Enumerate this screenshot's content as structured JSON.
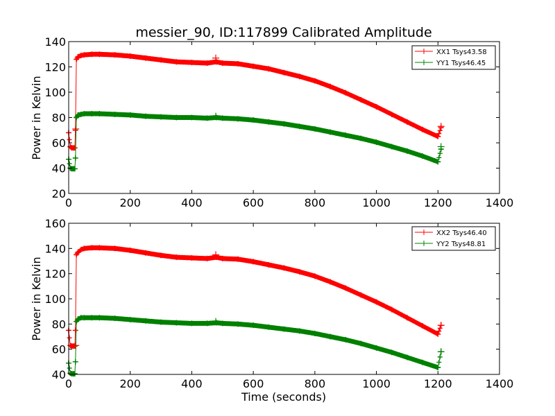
{
  "chart_data": [
    {
      "type": "line",
      "title": "messier_90, ID:117899 Calibrated Amplitude",
      "xlabel": "",
      "ylabel": "Power in Kelvin",
      "xlim": [
        0,
        1400
      ],
      "ylim": [
        20,
        140
      ],
      "xticks": [
        "0",
        "200",
        "400",
        "600",
        "800",
        "1000",
        "1200",
        "1400"
      ],
      "yticks": [
        "20",
        "40",
        "60",
        "80",
        "100",
        "120",
        "140"
      ],
      "legend_position": "top-right",
      "grid": false,
      "series": [
        {
          "name": "XX1 Tsys43.58",
          "color": "#ff0000",
          "marker": "plus",
          "x": [
            0,
            5,
            10,
            15,
            20,
            22,
            25,
            30,
            40,
            50,
            75,
            100,
            150,
            200,
            250,
            300,
            350,
            400,
            450,
            480,
            500,
            550,
            600,
            650,
            700,
            750,
            800,
            850,
            900,
            950,
            1000,
            1050,
            1100,
            1150,
            1200,
            1210
          ],
          "values": [
            68,
            57,
            56,
            56,
            56,
            70,
            126,
            128,
            129,
            129.5,
            130,
            130,
            129.5,
            128.5,
            127,
            125.5,
            124,
            123.5,
            123,
            124,
            123,
            122.5,
            120.5,
            118.5,
            115.5,
            112.5,
            109,
            104.5,
            99.5,
            94,
            88.5,
            82.5,
            76.5,
            70.5,
            65,
            72
          ],
          "outliers": [
            [
              478,
              127
            ],
            [
              23,
              71
            ],
            [
              1210,
              73
            ]
          ]
        },
        {
          "name": "YY1 Tsys46.45",
          "color": "#008000",
          "marker": "plus",
          "x": [
            0,
            5,
            10,
            15,
            20,
            22,
            25,
            30,
            40,
            50,
            75,
            100,
            150,
            200,
            250,
            300,
            350,
            400,
            450,
            480,
            500,
            550,
            600,
            650,
            700,
            750,
            800,
            850,
            900,
            950,
            1000,
            1050,
            1100,
            1150,
            1200,
            1210
          ],
          "values": [
            47,
            40,
            39.5,
            39.5,
            39.5,
            48,
            80,
            82,
            82.5,
            83,
            83,
            83,
            82.5,
            82,
            81,
            80.5,
            80,
            80,
            79.5,
            80,
            79.5,
            79,
            78,
            76.5,
            75,
            73,
            71,
            68.5,
            66,
            63.5,
            60.5,
            57,
            53.5,
            49.5,
            45,
            55
          ],
          "outliers": [
            [
              478,
              81
            ],
            [
              1210,
              57
            ]
          ]
        }
      ]
    },
    {
      "type": "line",
      "title": "",
      "xlabel": "Time (seconds)",
      "ylabel": "Power in Kelvin",
      "xlim": [
        0,
        1400
      ],
      "ylim": [
        40,
        160
      ],
      "xticks": [
        "0",
        "200",
        "400",
        "600",
        "800",
        "1000",
        "1200",
        "1400"
      ],
      "yticks": [
        "40",
        "60",
        "80",
        "100",
        "120",
        "140",
        "160"
      ],
      "legend_position": "top-right",
      "grid": false,
      "series": [
        {
          "name": "XX2 Tsys46.40",
          "color": "#ff0000",
          "marker": "plus",
          "x": [
            0,
            5,
            10,
            15,
            20,
            22,
            25,
            30,
            40,
            50,
            75,
            100,
            150,
            200,
            250,
            300,
            350,
            400,
            450,
            480,
            500,
            550,
            600,
            650,
            700,
            750,
            800,
            850,
            900,
            950,
            1000,
            1050,
            1100,
            1150,
            1200,
            1210
          ],
          "values": [
            75,
            63,
            62.5,
            62.5,
            62.5,
            75,
            135,
            137,
            139,
            140,
            140.5,
            140.5,
            140,
            138.5,
            136.5,
            134.5,
            133,
            132.5,
            132,
            133,
            132,
            131.5,
            129.5,
            127,
            124.5,
            121.5,
            118,
            113.5,
            108.5,
            103,
            97.5,
            91.5,
            85,
            78.5,
            72,
            79
          ],
          "outliers": [
            [
              478,
              135
            ],
            [
              23,
              63
            ],
            [
              1210,
              79
            ]
          ]
        },
        {
          "name": "YY2 Tsys48.81",
          "color": "#008000",
          "marker": "plus",
          "x": [
            0,
            5,
            10,
            15,
            20,
            22,
            25,
            30,
            40,
            50,
            75,
            100,
            150,
            200,
            250,
            300,
            350,
            400,
            450,
            480,
            500,
            550,
            600,
            650,
            700,
            750,
            800,
            850,
            900,
            950,
            1000,
            1050,
            1100,
            1150,
            1200,
            1210
          ],
          "values": [
            49,
            41,
            40.5,
            40.5,
            40.5,
            50,
            82,
            84,
            85,
            85,
            85,
            85,
            84.5,
            83.5,
            82.5,
            81.5,
            81,
            80.5,
            80.5,
            81,
            80.5,
            80,
            79,
            77.5,
            76,
            74.5,
            72.5,
            70,
            67.5,
            64.5,
            61,
            57.5,
            53.5,
            49.5,
            45.5,
            58
          ],
          "outliers": [
            [
              478,
              82
            ],
            [
              1210,
              58
            ]
          ]
        }
      ]
    }
  ]
}
